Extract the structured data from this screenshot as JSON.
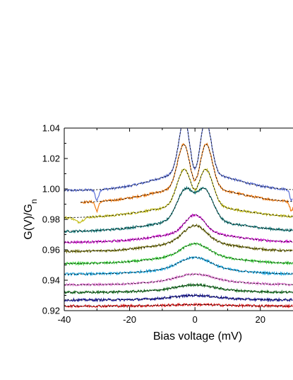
{
  "chart_data": {
    "type": "line",
    "title": "",
    "xlabel": "Bias voltage (mV)",
    "ylabel_main": "G(V)/G",
    "ylabel_sub": "n",
    "xlim": [
      -40,
      30
    ],
    "ylim": [
      0.92,
      1.04
    ],
    "x_ticks": [
      "-40",
      "-20",
      "0",
      "20"
    ],
    "x_tick_values": [
      -40,
      -20,
      0,
      20
    ],
    "y_ticks": [
      "0.92",
      "0.94",
      "0.96",
      "0.98",
      "1.00",
      "1.02",
      "1.04"
    ],
    "y_tick_values": [
      0.92,
      0.94,
      0.96,
      0.98,
      1.0,
      1.02,
      1.04
    ],
    "grid": false,
    "legend": "none",
    "fit_style": "dashed black",
    "series": [
      {
        "color": "#5b6fd6",
        "baseline": 0.999,
        "peak_amp": 0.036,
        "peak_pos": 3.2,
        "peak_width": 1.7,
        "dip_amp": 0.01,
        "dip_width": 3.2,
        "broad_amp": 0.012,
        "broad_width": 12,
        "x_start": -40,
        "notches": [
          [
            -30,
            -0.007,
            0.5
          ],
          [
            29.5,
            -0.007,
            0.5
          ]
        ]
      },
      {
        "color": "#f07a10",
        "baseline": 0.991,
        "peak_amp": 0.029,
        "peak_pos": 3.4,
        "peak_width": 1.9,
        "dip_amp": 0.007,
        "dip_width": 3.0,
        "broad_amp": 0.01,
        "broad_width": 13,
        "x_start": -35,
        "notches": [
          [
            -30,
            -0.006,
            0.5
          ],
          [
            29.5,
            -0.006,
            0.5
          ]
        ]
      },
      {
        "color": "#c6c01e",
        "baseline": 0.981,
        "peak_amp": 0.024,
        "peak_pos": 3.3,
        "peak_width": 2.2,
        "dip_amp": 0.005,
        "dip_width": 2.8,
        "broad_amp": 0.008,
        "broad_width": 14,
        "x_start": -40,
        "notches": [
          [
            -35.5,
            -0.003,
            1.2
          ]
        ]
      },
      {
        "color": "#157a7a",
        "baseline": 0.972,
        "peak_amp": 0.02,
        "peak_pos": 3.0,
        "peak_width": 2.6,
        "dip_amp": 0.002,
        "dip_width": 2.5,
        "broad_amp": 0.007,
        "broad_width": 14,
        "x_start": -40,
        "notches": []
      },
      {
        "color": "#d81ad8",
        "baseline": 0.965,
        "peak_amp": 0.012,
        "peak_pos": 0.0,
        "peak_width": 3.0,
        "dip_amp": 0.0,
        "dip_width": 2.0,
        "broad_amp": 0.006,
        "broad_width": 12,
        "x_start": -40,
        "notches": []
      },
      {
        "color": "#7a7818",
        "baseline": 0.959,
        "peak_amp": 0.011,
        "peak_pos": 0.0,
        "peak_width": 3.5,
        "dip_amp": 0.0,
        "dip_width": 2.0,
        "broad_amp": 0.006,
        "broad_width": 12,
        "x_start": -40,
        "notches": []
      },
      {
        "color": "#3cd23c",
        "baseline": 0.951,
        "peak_amp": 0.008,
        "peak_pos": 0.0,
        "peak_width": 4.0,
        "dip_amp": 0.0,
        "dip_width": 2.0,
        "broad_amp": 0.005,
        "broad_width": 12,
        "x_start": -40,
        "notches": []
      },
      {
        "color": "#1aa6e0",
        "baseline": 0.944,
        "peak_amp": 0.007,
        "peak_pos": 0.0,
        "peak_width": 4.5,
        "dip_amp": 0.0,
        "dip_width": 2.0,
        "broad_amp": 0.004,
        "broad_width": 12,
        "x_start": -40,
        "notches": []
      },
      {
        "color": "#e57ad6",
        "baseline": 0.937,
        "peak_amp": 0.004,
        "peak_pos": 0.0,
        "peak_width": 5.0,
        "dip_amp": 0.0,
        "dip_width": 2.0,
        "broad_amp": 0.003,
        "broad_width": 12,
        "x_start": -40,
        "notches": []
      },
      {
        "color": "#1f7a2a",
        "baseline": 0.932,
        "peak_amp": 0.003,
        "peak_pos": 0.0,
        "peak_width": 5.0,
        "dip_amp": 0.0,
        "dip_width": 2.0,
        "broad_amp": 0.002,
        "broad_width": 12,
        "x_start": -40,
        "notches": []
      },
      {
        "color": "#1a1a9a",
        "baseline": 0.927,
        "peak_amp": 0.002,
        "peak_pos": 0.0,
        "peak_width": 6.0,
        "dip_amp": 0.0,
        "dip_width": 2.0,
        "broad_amp": 0.001,
        "broad_width": 12,
        "x_start": -40,
        "notches": []
      },
      {
        "color": "#e01818",
        "baseline": 0.923,
        "peak_amp": 0.0005,
        "peak_pos": 0.0,
        "peak_width": 6.0,
        "dip_amp": 0.0,
        "dip_width": 2.0,
        "broad_amp": 0.0005,
        "broad_width": 12,
        "x_start": -40,
        "notches": []
      }
    ]
  }
}
